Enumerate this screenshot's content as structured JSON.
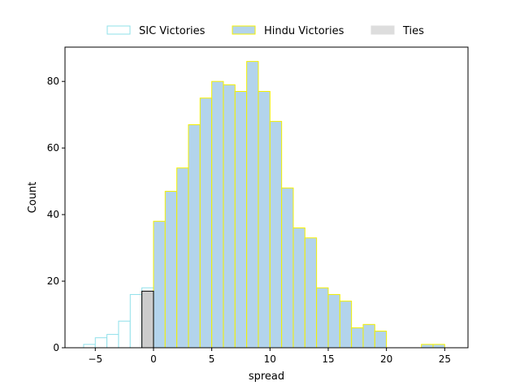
{
  "chart_data": {
    "type": "bar",
    "xlabel": "spread",
    "ylabel": "Count",
    "xlim": [
      -7.6,
      27
    ],
    "ylim": [
      0,
      90.3
    ],
    "bin_width": 1,
    "xticks": [
      -5,
      0,
      5,
      10,
      15,
      20,
      25
    ],
    "yticks": [
      0,
      20,
      40,
      60,
      80
    ],
    "legend_placement": "top-center",
    "grid": false,
    "series": [
      {
        "name": "SIC Victories",
        "fill": "#ffffff",
        "edge": "#8fe0ea",
        "bins": [
          {
            "x": -6,
            "value": 1
          },
          {
            "x": -5,
            "value": 3
          },
          {
            "x": -4,
            "value": 4
          },
          {
            "x": -3,
            "value": 8
          },
          {
            "x": -2,
            "value": 16
          },
          {
            "x": -1,
            "value": 18
          }
        ]
      },
      {
        "name": "Hindu Victories",
        "fill": "#b3d4ec",
        "edge": "#f4f000",
        "bins": [
          {
            "x": 0,
            "value": 38
          },
          {
            "x": 1,
            "value": 47
          },
          {
            "x": 2,
            "value": 54
          },
          {
            "x": 3,
            "value": 67
          },
          {
            "x": 4,
            "value": 75
          },
          {
            "x": 5,
            "value": 80
          },
          {
            "x": 6,
            "value": 79
          },
          {
            "x": 7,
            "value": 77
          },
          {
            "x": 8,
            "value": 86
          },
          {
            "x": 9,
            "value": 77
          },
          {
            "x": 10,
            "value": 68
          },
          {
            "x": 11,
            "value": 48
          },
          {
            "x": 12,
            "value": 36
          },
          {
            "x": 13,
            "value": 33
          },
          {
            "x": 14,
            "value": 18
          },
          {
            "x": 15,
            "value": 16
          },
          {
            "x": 16,
            "value": 14
          },
          {
            "x": 17,
            "value": 6
          },
          {
            "x": 18,
            "value": 7
          },
          {
            "x": 19,
            "value": 5
          },
          {
            "x": 23,
            "value": 1
          },
          {
            "x": 24,
            "value": 1
          }
        ]
      },
      {
        "name": "Ties",
        "fill": "#cccccc",
        "edge": "#000000",
        "legend_fill": "#dddddd",
        "legend_edge": "#dddddd",
        "bins": [
          {
            "x": -1,
            "value": 17
          }
        ]
      }
    ]
  }
}
